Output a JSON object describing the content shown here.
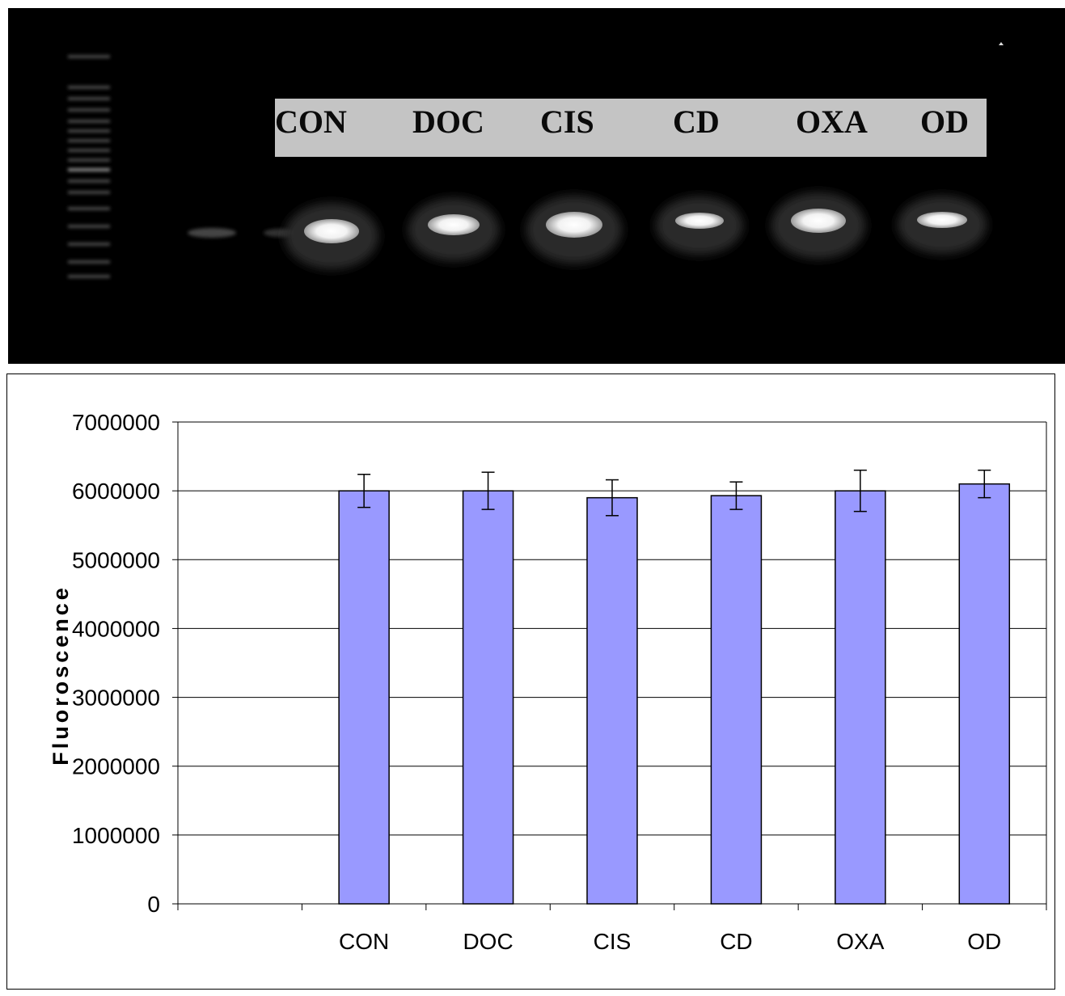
{
  "gel": {
    "lanes": [
      "CON",
      "DOC",
      "CIS",
      "CD",
      "OXA",
      "OD"
    ],
    "label_strip_color": "#c4c4c4"
  },
  "chart_data": {
    "type": "bar",
    "categories": [
      "",
      "CON",
      "DOC",
      "CIS",
      "CD",
      "OXA",
      "OD"
    ],
    "values": [
      null,
      6000000,
      6000000,
      5900000,
      5930000,
      6000000,
      6100000
    ],
    "error": [
      null,
      240000,
      270000,
      260000,
      200000,
      300000,
      200000
    ],
    "ylabel": "Fluoroscence",
    "xlabel": "",
    "ylim": [
      0,
      7000000
    ],
    "yticks": [
      0,
      1000000,
      2000000,
      3000000,
      4000000,
      5000000,
      6000000,
      7000000
    ],
    "grid": true,
    "bar_color": "#9999ff",
    "legend": false
  }
}
